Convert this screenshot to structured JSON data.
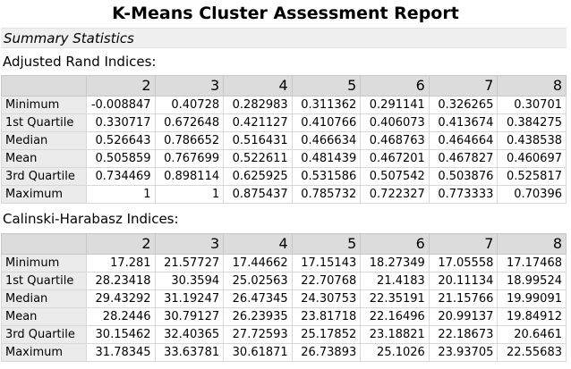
{
  "title": "K-Means Cluster Assessment Report",
  "subtitle": "Summary Statistics",
  "columns": [
    "2",
    "3",
    "4",
    "5",
    "6",
    "7",
    "8"
  ],
  "ari": {
    "label": "Adjusted Rand Indices:",
    "rows": [
      {
        "stat": "Minimum",
        "values": [
          "-0.008847",
          "0.40728",
          "0.282983",
          "0.311362",
          "0.291141",
          "0.326265",
          "0.30701"
        ]
      },
      {
        "stat": "1st Quartile",
        "values": [
          "0.330717",
          "0.672648",
          "0.421127",
          "0.410766",
          "0.406073",
          "0.413674",
          "0.384275"
        ]
      },
      {
        "stat": "Median",
        "values": [
          "0.526643",
          "0.786652",
          "0.516431",
          "0.466634",
          "0.468763",
          "0.464664",
          "0.438538"
        ]
      },
      {
        "stat": "Mean",
        "values": [
          "0.505859",
          "0.767699",
          "0.522611",
          "0.481439",
          "0.467201",
          "0.467827",
          "0.460697"
        ]
      },
      {
        "stat": "3rd Quartile",
        "values": [
          "0.734469",
          "0.898114",
          "0.625925",
          "0.531586",
          "0.507542",
          "0.503876",
          "0.525817"
        ]
      },
      {
        "stat": "Maximum",
        "values": [
          "1",
          "1",
          "0.875437",
          "0.785732",
          "0.722327",
          "0.773333",
          "0.70396"
        ]
      }
    ]
  },
  "ch": {
    "label": "Calinski-Harabasz Indices:",
    "rows": [
      {
        "stat": "Minimum",
        "values": [
          "17.281",
          "21.57727",
          "17.44662",
          "17.15143",
          "18.27349",
          "17.05558",
          "17.17468"
        ]
      },
      {
        "stat": "1st Quartile",
        "values": [
          "28.23418",
          "30.3594",
          "25.02563",
          "22.70768",
          "21.4183",
          "20.11134",
          "18.99524"
        ]
      },
      {
        "stat": "Median",
        "values": [
          "29.43292",
          "31.19247",
          "26.47345",
          "24.30753",
          "22.35191",
          "21.15766",
          "19.99091"
        ]
      },
      {
        "stat": "Mean",
        "values": [
          "28.2446",
          "30.79127",
          "26.23935",
          "23.81718",
          "22.16496",
          "20.99137",
          "19.84912"
        ]
      },
      {
        "stat": "3rd Quartile",
        "values": [
          "30.15462",
          "32.40365",
          "27.72593",
          "25.17852",
          "23.18821",
          "22.18673",
          "20.6461"
        ]
      },
      {
        "stat": "Maximum",
        "values": [
          "31.78345",
          "33.63781",
          "30.61871",
          "26.73893",
          "25.1026",
          "23.93705",
          "22.55683"
        ]
      }
    ]
  }
}
